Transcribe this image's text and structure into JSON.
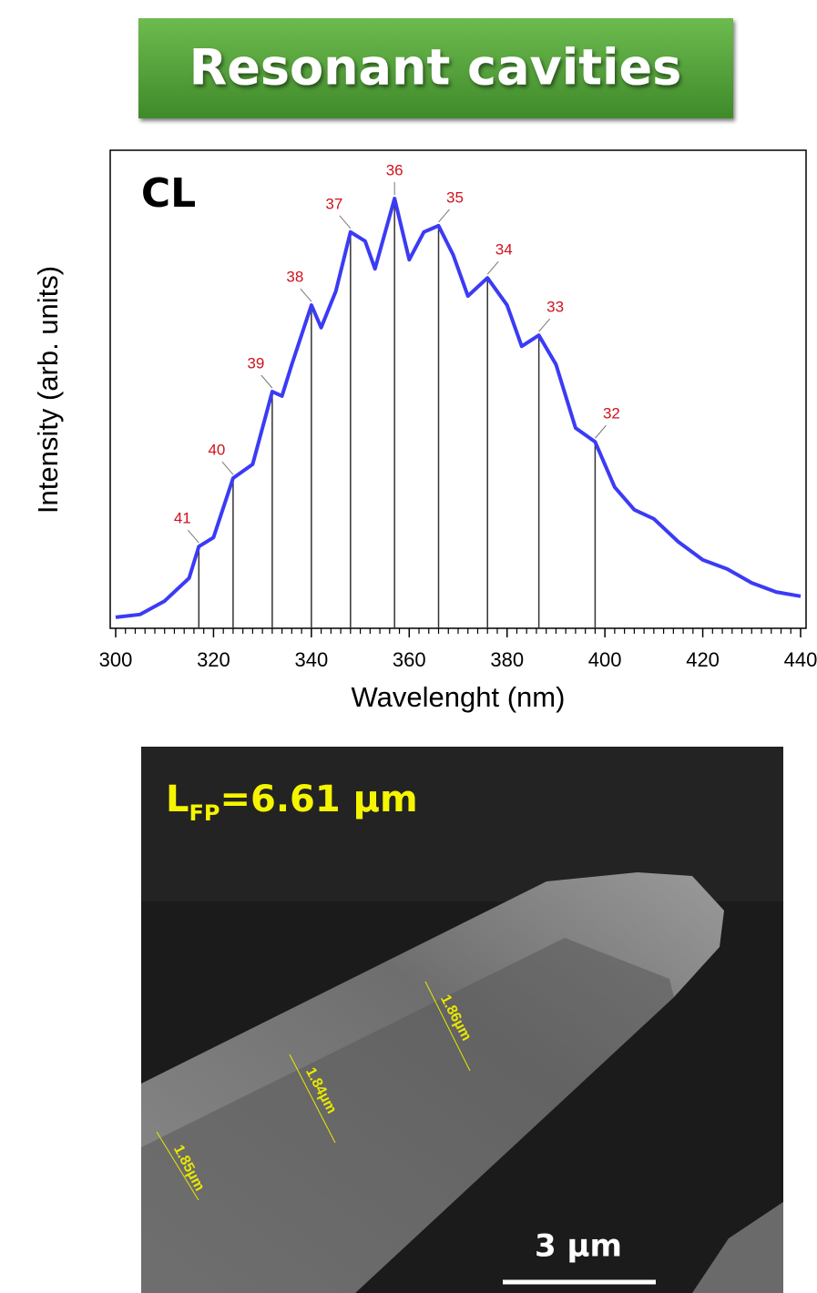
{
  "title": "Resonant cavities",
  "chart_data": {
    "type": "line",
    "panel_label": "CL",
    "x_label": "Wavelenght (nm)",
    "y_label": "Intensity (arb. units)",
    "x": [
      300,
      305,
      310,
      315,
      317,
      320,
      324,
      328,
      332,
      334,
      336,
      340,
      342,
      345,
      348,
      351,
      353,
      357,
      360,
      363,
      366,
      369,
      372,
      376,
      380,
      383,
      386.5,
      390,
      394,
      398,
      402,
      406,
      410,
      415,
      420,
      425,
      430,
      435,
      440
    ],
    "values": [
      2.3,
      2.9,
      5.7,
      10.5,
      17.1,
      19,
      31.4,
      34.3,
      49.5,
      48.6,
      55.2,
      67.6,
      62.9,
      70.5,
      82.9,
      81,
      75.2,
      89.9,
      77.1,
      82.9,
      84.2,
      78.1,
      69.5,
      73.3,
      67.6,
      59,
      61.3,
      55.2,
      41.9,
      39,
      29.5,
      24.8,
      22.9,
      18.1,
      14.3,
      12.4,
      9.5,
      7.6,
      6.7
    ],
    "color": "#3b3bf5",
    "xlim": [
      300,
      440
    ],
    "ylim": [
      0,
      100
    ],
    "xticks": [
      300,
      320,
      340,
      360,
      380,
      400,
      420,
      440
    ],
    "modes": [
      {
        "order": 41,
        "x": 317
      },
      {
        "order": 40,
        "x": 324
      },
      {
        "order": 39,
        "x": 332
      },
      {
        "order": 38,
        "x": 340
      },
      {
        "order": 37,
        "x": 348
      },
      {
        "order": 36,
        "x": 357
      },
      {
        "order": 35,
        "x": 366
      },
      {
        "order": 34,
        "x": 376
      },
      {
        "order": 33,
        "x": 386.5
      },
      {
        "order": 32,
        "x": 398
      }
    ],
    "mode_label_color": "#d0121b"
  },
  "image": {
    "length_main": "L",
    "length_sub": "FP",
    "length_rest": "=6.61 µm",
    "measurements": [
      "1.86µm",
      "1.84µm",
      "1.85µm"
    ],
    "scale_bar": "3 µm"
  }
}
